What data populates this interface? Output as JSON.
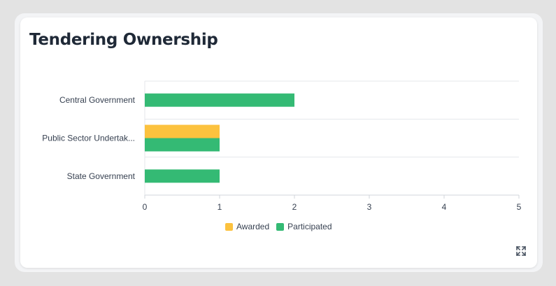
{
  "card": {
    "title": "Tendering Ownership"
  },
  "colors": {
    "awarded": "#fcc23e",
    "participated": "#34ba74",
    "grid": "#e5e7eb",
    "axis": "#d1d5db",
    "text": "#374151"
  },
  "icons": {
    "expand": "expand-icon"
  },
  "chart_data": {
    "type": "bar",
    "orientation": "horizontal",
    "stacked": false,
    "categories": [
      "Central Government",
      "Public Sector Undertak...",
      "State Government"
    ],
    "series": [
      {
        "name": "Awarded",
        "values": [
          0,
          1,
          0
        ]
      },
      {
        "name": "Participated",
        "values": [
          2,
          1,
          1
        ]
      }
    ],
    "xticks": [
      "0",
      "1",
      "2",
      "3",
      "4",
      "5"
    ],
    "xlim": [
      0,
      5
    ],
    "grid": "horizontal-category-separators",
    "legend": "bottom-center"
  }
}
